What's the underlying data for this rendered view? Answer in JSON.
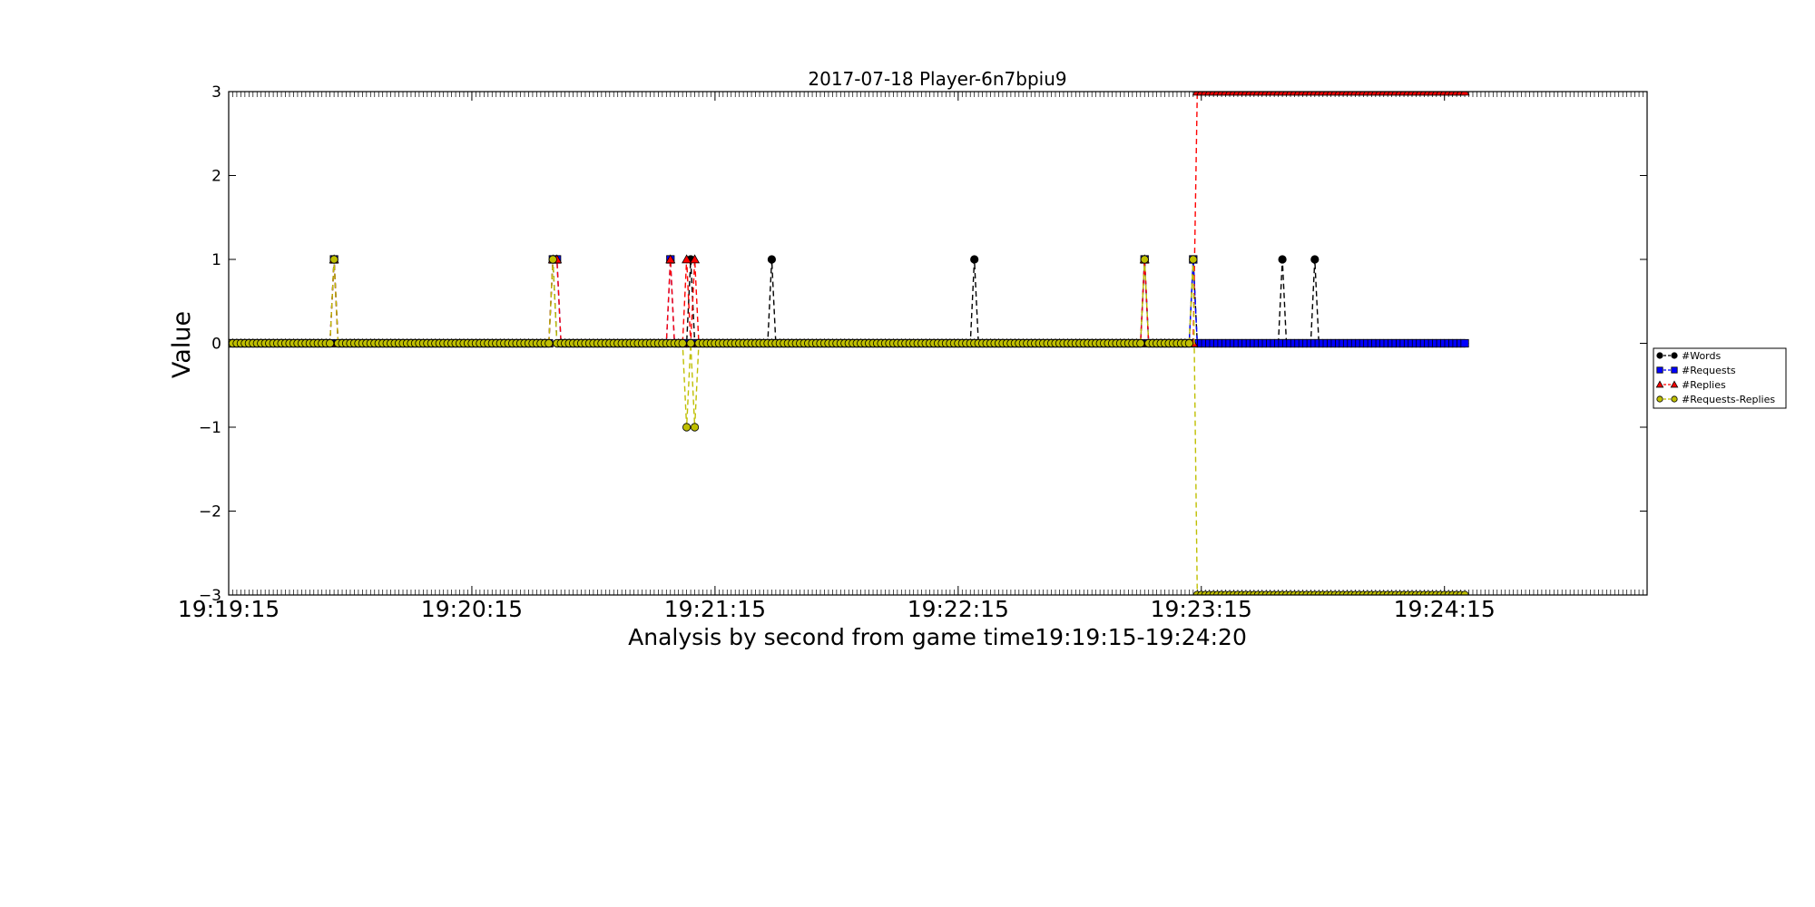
{
  "chart_data": {
    "type": "line",
    "title": "2017-07-18 Player-6n7bpiu9",
    "xlabel": "Analysis by second from game time19:19:15-19:24:20",
    "ylabel": "Value",
    "ylim": [
      -3,
      3
    ],
    "xlim_seconds": [
      0,
      350
    ],
    "x_start_time": "19:19:15",
    "x_end_time": "19:24:20",
    "data_range_seconds": [
      0,
      305
    ],
    "xticks": [
      {
        "seconds": 0,
        "label": "19:19:15"
      },
      {
        "seconds": 60,
        "label": "19:20:15"
      },
      {
        "seconds": 120,
        "label": "19:21:15"
      },
      {
        "seconds": 180,
        "label": "19:22:15"
      },
      {
        "seconds": 240,
        "label": "19:23:15"
      },
      {
        "seconds": 300,
        "label": "19:24:15"
      }
    ],
    "yticks": [
      -3,
      -2,
      -1,
      0,
      1,
      2,
      3
    ],
    "ytick_labels": [
      "−3",
      "−2",
      "−1",
      "0",
      "1",
      "2",
      "3"
    ],
    "legend_position": "right",
    "series": [
      {
        "name": "#Words",
        "color": "#000000",
        "marker": "circle",
        "default_value": 0,
        "nonzero": [
          [
            26,
            1
          ],
          [
            80,
            1
          ],
          [
            114,
            1
          ],
          [
            134,
            1
          ],
          [
            184,
            1
          ],
          [
            226,
            1
          ],
          [
            238,
            1
          ],
          [
            260,
            1
          ],
          [
            268,
            1
          ]
        ]
      },
      {
        "name": "#Requests",
        "color": "#0000ff",
        "marker": "square",
        "default_value": 0,
        "nonzero": [
          [
            26,
            1
          ],
          [
            80,
            1
          ],
          [
            81,
            1
          ],
          [
            109,
            1
          ],
          [
            226,
            1
          ],
          [
            238,
            1
          ]
        ]
      },
      {
        "name": "#Replies",
        "color": "#ff0000",
        "marker": "triangle",
        "default_value": 0,
        "nonzero": [
          [
            26,
            1
          ],
          [
            80,
            1
          ],
          [
            81,
            1
          ],
          [
            109,
            1
          ],
          [
            113,
            1
          ],
          [
            115,
            1
          ],
          [
            226,
            1
          ]
        ],
        "from_second": 239,
        "from_value": 3
      },
      {
        "name": "#Requests-Replies",
        "color": "#bfbf00",
        "marker": "circle",
        "default_value": 0,
        "nonzero": [
          [
            26,
            1
          ],
          [
            80,
            1
          ],
          [
            113,
            -1
          ],
          [
            115,
            -1
          ],
          [
            226,
            1
          ],
          [
            238,
            1
          ]
        ],
        "from_second": 239,
        "from_value": -3
      }
    ]
  }
}
